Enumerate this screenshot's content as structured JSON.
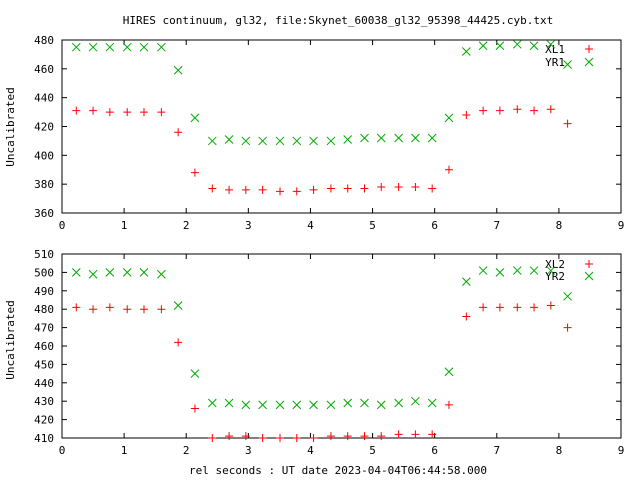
{
  "chart_data": [
    {
      "type": "scatter",
      "title": "HIRES continuum, gl32, file:Skynet_60038_gl32_95398_44425.cyb.txt",
      "xlabel": "",
      "ylabel": "Uncalibrated",
      "xlim": [
        0,
        9
      ],
      "ylim": [
        360,
        480
      ],
      "xticks": [
        0,
        1,
        2,
        3,
        4,
        5,
        6,
        7,
        8,
        9
      ],
      "yticks": [
        360,
        380,
        400,
        420,
        440,
        460,
        480
      ],
      "legend_position": "top-right",
      "grid": false,
      "x": [
        0.23,
        0.5,
        0.77,
        1.05,
        1.32,
        1.6,
        1.87,
        2.14,
        2.42,
        2.69,
        2.96,
        3.23,
        3.51,
        3.78,
        4.05,
        4.33,
        4.6,
        4.87,
        5.14,
        5.42,
        5.69,
        5.96,
        6.23,
        6.51,
        6.78,
        7.05,
        7.33,
        7.6,
        7.87,
        8.14
      ],
      "series": [
        {
          "name": "XL1",
          "color": "#ff0000",
          "marker": "plus",
          "x": [
            0.23,
            0.5,
            0.77,
            1.05,
            1.32,
            1.6,
            1.87,
            2.14,
            2.42,
            2.69,
            2.96,
            3.23,
            3.51,
            3.78,
            4.05,
            4.33,
            4.6,
            4.87,
            5.14,
            5.42,
            5.69,
            5.96,
            6.23,
            6.51,
            6.78,
            7.05,
            7.33,
            7.6,
            7.87,
            8.14
          ],
          "values": [
            431,
            431,
            430,
            430,
            430,
            430,
            416,
            388,
            377,
            376,
            376,
            376,
            375,
            375,
            376,
            377,
            377,
            377,
            378,
            378,
            378,
            377,
            390,
            428,
            431,
            431,
            432,
            431,
            432,
            422
          ]
        },
        {
          "name": "YR1",
          "color": "#00aa00",
          "marker": "cross",
          "x": [
            0.23,
            0.5,
            0.77,
            1.05,
            1.32,
            1.6,
            1.87,
            2.14,
            2.42,
            2.69,
            2.96,
            3.23,
            3.51,
            3.78,
            4.05,
            4.33,
            4.6,
            4.87,
            5.14,
            5.42,
            5.69,
            5.96,
            6.23,
            6.51,
            6.78,
            7.05,
            7.33,
            7.6,
            7.87,
            8.14
          ],
          "values": [
            475,
            475,
            475,
            475,
            475,
            475,
            459,
            426,
            410,
            411,
            410,
            410,
            410,
            410,
            410,
            410,
            411,
            412,
            412,
            412,
            412,
            412,
            426,
            472,
            476,
            476,
            477,
            476,
            477,
            463
          ]
        }
      ]
    },
    {
      "type": "scatter",
      "title": "",
      "xlabel": "rel seconds : UT date 2023-04-04T06:44:58.000",
      "ylabel": "Uncalibrated",
      "xlim": [
        0,
        9
      ],
      "ylim": [
        410,
        510
      ],
      "xticks": [
        0,
        1,
        2,
        3,
        4,
        5,
        6,
        7,
        8,
        9
      ],
      "yticks": [
        410,
        420,
        430,
        440,
        450,
        460,
        470,
        480,
        490,
        500,
        510
      ],
      "legend_position": "top-right",
      "grid": false,
      "x": [
        0.23,
        0.5,
        0.77,
        1.05,
        1.32,
        1.6,
        1.87,
        2.14,
        2.42,
        2.69,
        2.96,
        3.23,
        3.51,
        3.78,
        4.05,
        4.33,
        4.6,
        4.87,
        5.14,
        5.42,
        5.69,
        5.96,
        6.23,
        6.51,
        6.78,
        7.05,
        7.33,
        7.6,
        7.87,
        8.14
      ],
      "series": [
        {
          "name": "XL2",
          "color": "#ff0000",
          "marker": "plus",
          "x": [
            0.23,
            0.5,
            0.77,
            1.05,
            1.32,
            1.6,
            1.87,
            2.14,
            2.42,
            2.69,
            2.96,
            3.23,
            3.51,
            3.78,
            4.05,
            4.33,
            4.6,
            4.87,
            5.14,
            5.42,
            5.69,
            5.96,
            6.23,
            6.51,
            6.78,
            7.05,
            7.33,
            7.6,
            7.87,
            8.14
          ],
          "values": [
            481,
            480,
            481,
            480,
            480,
            480,
            462,
            426,
            410,
            411,
            411,
            410,
            410,
            410,
            410,
            411,
            411,
            411,
            411,
            412,
            412,
            412,
            428,
            476,
            481,
            481,
            481,
            481,
            482,
            470
          ]
        },
        {
          "name": "YR2",
          "color": "#00aa00",
          "marker": "cross",
          "x": [
            0.23,
            0.5,
            0.77,
            1.05,
            1.32,
            1.6,
            1.87,
            2.14,
            2.42,
            2.69,
            2.96,
            3.23,
            3.51,
            3.78,
            4.05,
            4.33,
            4.6,
            4.87,
            5.14,
            5.42,
            5.69,
            5.96,
            6.23,
            6.51,
            6.78,
            7.05,
            7.33,
            7.6,
            7.87,
            8.14
          ],
          "values": [
            500,
            499,
            500,
            500,
            500,
            499,
            482,
            445,
            429,
            429,
            428,
            428,
            428,
            428,
            428,
            428,
            429,
            429,
            428,
            429,
            430,
            429,
            446,
            495,
            501,
            500,
            501,
            501,
            501,
            487
          ]
        }
      ]
    }
  ]
}
